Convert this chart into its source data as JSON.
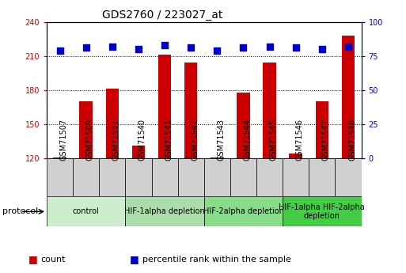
{
  "title": "GDS2760 / 223027_at",
  "samples": [
    "GSM71507",
    "GSM71509",
    "GSM71511",
    "GSM71540",
    "GSM71541",
    "GSM71542",
    "GSM71543",
    "GSM71544",
    "GSM71545",
    "GSM71546",
    "GSM71547",
    "GSM71548"
  ],
  "counts": [
    121,
    170,
    181,
    131,
    211,
    204,
    121,
    178,
    204,
    124,
    170,
    228
  ],
  "percentile_ranks": [
    79,
    81,
    82,
    80,
    83,
    81,
    79,
    81,
    82,
    81,
    80,
    82
  ],
  "ylim_left": [
    120,
    240
  ],
  "ylim_right": [
    0,
    100
  ],
  "yticks_left": [
    120,
    150,
    180,
    210,
    240
  ],
  "yticks_right": [
    0,
    25,
    50,
    75,
    100
  ],
  "bar_color": "#cc0000",
  "dot_color": "#0000cc",
  "groups": [
    {
      "label": "control",
      "start": 0,
      "end": 3,
      "color": "#cceecc"
    },
    {
      "label": "HIF-1alpha depletion",
      "start": 3,
      "end": 6,
      "color": "#aaddaa"
    },
    {
      "label": "HIF-2alpha depletion",
      "start": 6,
      "end": 9,
      "color": "#88dd88"
    },
    {
      "label": "HIF-1alpha HIF-2alpha\ndepletion",
      "start": 9,
      "end": 12,
      "color": "#44cc44"
    }
  ],
  "group_colors": [
    "#cceecc",
    "#aaddaa",
    "#88dd88",
    "#44cc44"
  ],
  "sample_bg_color": "#d0d0d0",
  "legend_items": [
    {
      "label": "count",
      "color": "#cc0000",
      "marker": "s"
    },
    {
      "label": "percentile rank within the sample",
      "color": "#0000cc",
      "marker": "s"
    }
  ],
  "bar_width": 0.5,
  "dot_size": 30,
  "title_fontsize": 10,
  "tick_fontsize": 7,
  "legend_fontsize": 8,
  "group_fontsize": 7,
  "protocol_fontsize": 8
}
